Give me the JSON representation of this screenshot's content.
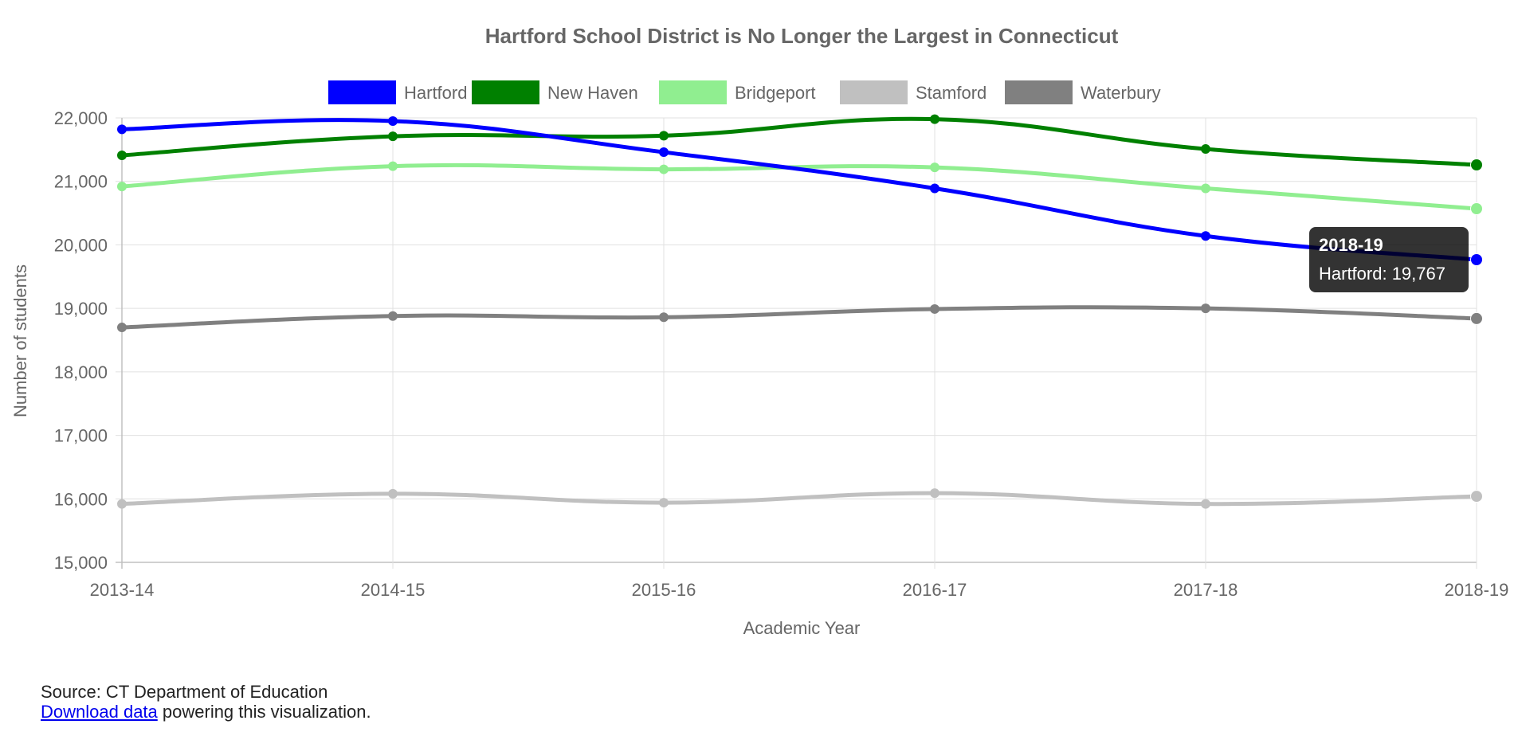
{
  "chart_data": {
    "type": "line",
    "title": "Hartford School District is No Longer the Largest in Connecticut",
    "xlabel": "Academic Year",
    "ylabel": "Number of students",
    "categories": [
      "2013-14",
      "2014-15",
      "2015-16",
      "2016-17",
      "2017-18",
      "2018-19"
    ],
    "ylim": [
      15000,
      22000
    ],
    "yticks": [
      15000,
      16000,
      17000,
      18000,
      19000,
      20000,
      21000,
      22000
    ],
    "ytick_labels": [
      "15,000",
      "16,000",
      "17,000",
      "18,000",
      "19,000",
      "20,000",
      "21,000",
      "22,000"
    ],
    "grid": true,
    "legend_position": "top",
    "series": [
      {
        "name": "Hartford",
        "color": "#0000ff",
        "values": [
          21820,
          21950,
          21460,
          20890,
          20140,
          19767
        ]
      },
      {
        "name": "New Haven",
        "color": "#008000",
        "values": [
          21410,
          21710,
          21720,
          21980,
          21510,
          21260
        ]
      },
      {
        "name": "Bridgeport",
        "color": "#90ee90",
        "values": [
          20920,
          21240,
          21190,
          21220,
          20890,
          20570
        ]
      },
      {
        "name": "Stamford",
        "color": "#c0c0c0",
        "values": [
          15920,
          16080,
          15940,
          16090,
          15920,
          16040
        ]
      },
      {
        "name": "Waterbury",
        "color": "#808080",
        "values": [
          18700,
          18880,
          18860,
          18990,
          19000,
          18840
        ]
      }
    ],
    "tooltip": {
      "title": "2018-19",
      "text": "Hartford: 19,767",
      "series_index": 0,
      "category_index": 5
    }
  },
  "footer": {
    "source_text": "Source: CT Department of Education",
    "link_text": "Download data",
    "after_link_text": " powering this visualization."
  }
}
